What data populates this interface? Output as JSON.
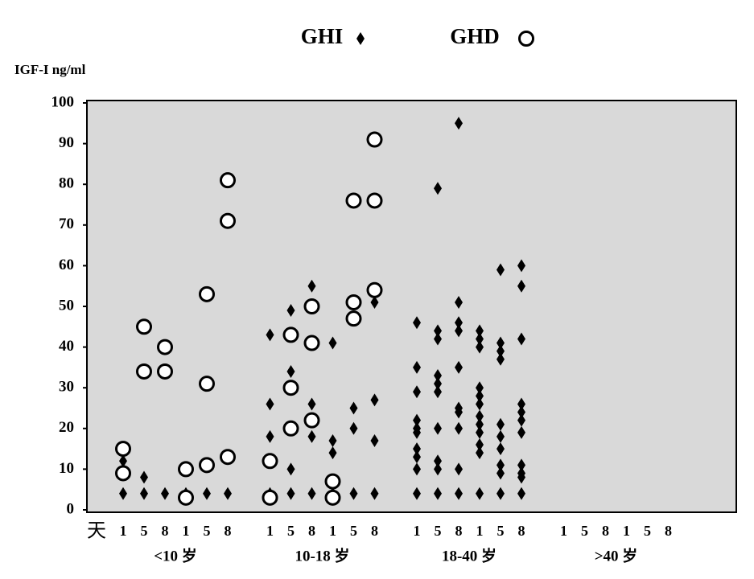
{
  "chart_data": {
    "type": "scatter",
    "legend_title_items": true,
    "y_label": "IGF-I ng/ml",
    "x_prefix": "天",
    "categories": [
      "1",
      "5",
      "8",
      "1",
      "5",
      "8",
      "1",
      "5",
      "8",
      "1",
      "5",
      "8",
      "1",
      "5",
      "8",
      "1",
      "5",
      "8",
      "1",
      "5",
      "8",
      "1",
      "5",
      "8"
    ],
    "groups": [
      "<10 岁",
      "10-18 岁",
      "18-40 岁",
      ">40 岁"
    ],
    "ylim": [
      0,
      100
    ],
    "yticks": [
      0,
      10,
      20,
      30,
      40,
      50,
      60,
      70,
      80,
      90,
      100
    ],
    "background": "#d9d9d9",
    "series": [
      {
        "name": "GHI",
        "marker": "diamond",
        "color": "#000000",
        "points": [
          [
            0,
            4
          ],
          [
            0,
            12
          ],
          [
            1,
            4
          ],
          [
            1,
            8
          ],
          [
            2,
            4
          ],
          [
            3,
            4
          ],
          [
            4,
            4
          ],
          [
            5,
            4
          ],
          [
            6,
            4
          ],
          [
            6,
            18
          ],
          [
            6,
            26
          ],
          [
            6,
            43
          ],
          [
            7,
            4
          ],
          [
            7,
            10
          ],
          [
            7,
            34
          ],
          [
            7,
            49
          ],
          [
            8,
            4
          ],
          [
            8,
            18
          ],
          [
            8,
            26
          ],
          [
            8,
            55
          ],
          [
            9,
            4
          ],
          [
            9,
            14
          ],
          [
            9,
            17
          ],
          [
            9,
            41
          ],
          [
            10,
            4
          ],
          [
            10,
            20
          ],
          [
            10,
            25
          ],
          [
            11,
            4
          ],
          [
            11,
            17
          ],
          [
            11,
            27
          ],
          [
            11,
            51
          ],
          [
            12,
            4
          ],
          [
            12,
            10
          ],
          [
            12,
            13
          ],
          [
            12,
            15
          ],
          [
            12,
            19
          ],
          [
            12,
            20
          ],
          [
            12,
            22
          ],
          [
            12,
            29
          ],
          [
            12,
            35
          ],
          [
            12,
            46
          ],
          [
            13,
            4
          ],
          [
            13,
            10
          ],
          [
            13,
            12
          ],
          [
            13,
            20
          ],
          [
            13,
            29
          ],
          [
            13,
            31
          ],
          [
            13,
            33
          ],
          [
            13,
            42
          ],
          [
            13,
            44
          ],
          [
            13,
            79
          ],
          [
            14,
            4
          ],
          [
            14,
            10
          ],
          [
            14,
            20
          ],
          [
            14,
            24
          ],
          [
            14,
            25
          ],
          [
            14,
            35
          ],
          [
            14,
            44
          ],
          [
            14,
            46
          ],
          [
            14,
            51
          ],
          [
            14,
            95
          ],
          [
            15,
            4
          ],
          [
            15,
            14
          ],
          [
            15,
            16
          ],
          [
            15,
            19
          ],
          [
            15,
            21
          ],
          [
            15,
            23
          ],
          [
            15,
            26
          ],
          [
            15,
            28
          ],
          [
            15,
            30
          ],
          [
            15,
            40
          ],
          [
            15,
            42
          ],
          [
            15,
            44
          ],
          [
            16,
            4
          ],
          [
            16,
            9
          ],
          [
            16,
            11
          ],
          [
            16,
            15
          ],
          [
            16,
            18
          ],
          [
            16,
            21
          ],
          [
            16,
            37
          ],
          [
            16,
            39
          ],
          [
            16,
            41
          ],
          [
            16,
            59
          ],
          [
            17,
            4
          ],
          [
            17,
            8
          ],
          [
            17,
            9
          ],
          [
            17,
            11
          ],
          [
            17,
            19
          ],
          [
            17,
            22
          ],
          [
            17,
            24
          ],
          [
            17,
            26
          ],
          [
            17,
            42
          ],
          [
            17,
            55
          ],
          [
            17,
            60
          ]
        ]
      },
      {
        "name": "GHD",
        "marker": "circle",
        "color": "#000000",
        "points": [
          [
            0,
            9
          ],
          [
            0,
            15
          ],
          [
            1,
            34
          ],
          [
            1,
            45
          ],
          [
            2,
            34
          ],
          [
            2,
            40
          ],
          [
            3,
            3
          ],
          [
            3,
            10
          ],
          [
            4,
            11
          ],
          [
            4,
            31
          ],
          [
            4,
            53
          ],
          [
            5,
            13
          ],
          [
            5,
            71
          ],
          [
            5,
            81
          ],
          [
            6,
            3
          ],
          [
            6,
            12
          ],
          [
            7,
            20
          ],
          [
            7,
            30
          ],
          [
            7,
            43
          ],
          [
            8,
            22
          ],
          [
            8,
            41
          ],
          [
            8,
            50
          ],
          [
            9,
            3
          ],
          [
            9,
            7
          ],
          [
            10,
            47
          ],
          [
            10,
            51
          ],
          [
            10,
            76
          ],
          [
            11,
            54
          ],
          [
            11,
            76
          ],
          [
            11,
            91
          ]
        ]
      }
    ]
  }
}
